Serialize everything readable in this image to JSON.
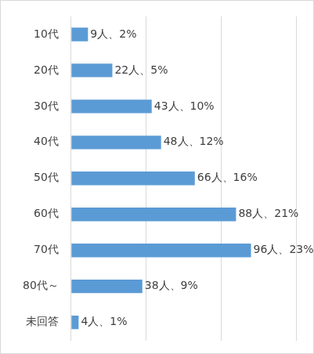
{
  "chart_data": {
    "type": "bar",
    "orientation": "horizontal",
    "categories": [
      "10代",
      "20代",
      "30代",
      "40代",
      "50代",
      "60代",
      "70代",
      "80代～",
      "未回答"
    ],
    "values": [
      9,
      22,
      43,
      48,
      66,
      88,
      96,
      38,
      4
    ],
    "value_labels": [
      "9人、2%",
      "22人、5%",
      "43人、10%",
      "48人、12%",
      "66人、16%",
      "88人、21%",
      "96人、23%",
      "38人、9%",
      "4人、1%"
    ],
    "data_labels": true,
    "color": "#5b9bd5",
    "xlim": [
      0,
      120
    ],
    "xticks": [
      0,
      40,
      80,
      120
    ],
    "grid": true,
    "tick_labels": "y"
  }
}
